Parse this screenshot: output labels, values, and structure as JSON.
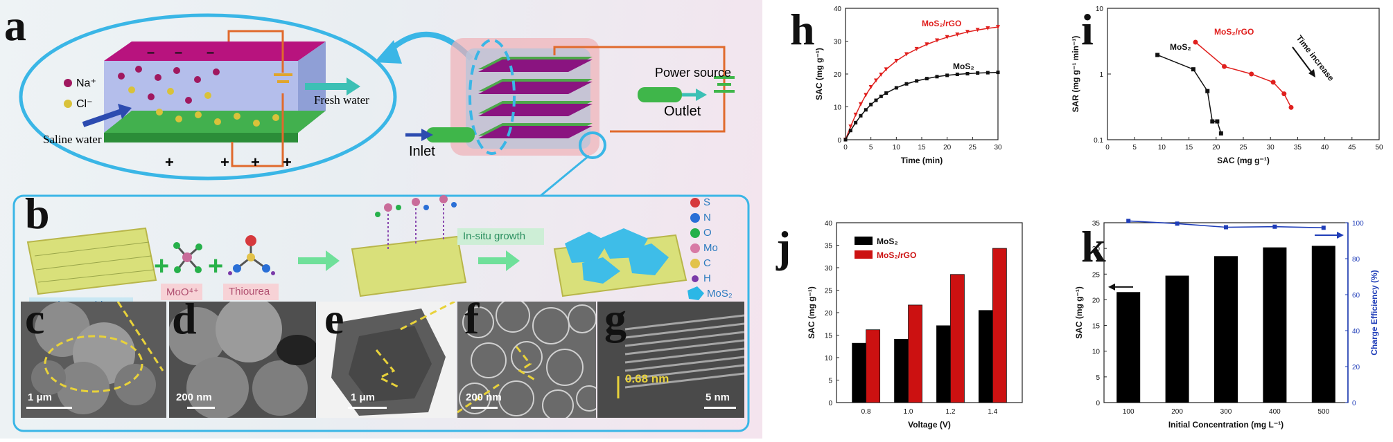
{
  "figure": {
    "letters": [
      "a",
      "b",
      "c",
      "d",
      "e",
      "f",
      "g",
      "h",
      "i",
      "j",
      "k"
    ],
    "colors": {
      "black_bar": "#000000",
      "red_bar": "#cc1111",
      "red_line": "#e0201e",
      "blue_line": "#1f3db8",
      "frame_cyan": "#3ab6e6"
    }
  },
  "panel_a": {
    "ions": [
      "Na⁺",
      "Cl⁻"
    ],
    "saline": "Saline water",
    "fresh": "Fresh water",
    "inlet": "Inlet",
    "outlet": "Outlet",
    "power": "Power source",
    "minus": "–",
    "plus": "+"
  },
  "panel_b": {
    "graphene": "Graphene oxide",
    "moo": "MoO⁴⁺",
    "thiourea": "Thiourea",
    "insitu": "In-situ growth",
    "legend": [
      "S",
      "N",
      "O",
      "Mo",
      "C",
      "H",
      "MoS₂"
    ],
    "legend_colors": [
      "#d6393d",
      "#2a6fd6",
      "#26b04a",
      "#d87aa5",
      "#e2c24a",
      "#7a3aa8",
      "#2bb7e6"
    ]
  },
  "micrographs": {
    "c": "1 μm",
    "d": "200 nm",
    "e": "1 μm",
    "f": "200 nm",
    "g_spacing": "0.68 nm",
    "g": "5 nm"
  },
  "chart_h": {
    "xlabel": "Time (min)",
    "ylabel": "SAC (mg g⁻¹)",
    "series_red": "MoS₂/rGO",
    "series_black": "MoS₂"
  },
  "chart_i": {
    "xlabel": "SAC (mg g⁻¹)",
    "ylabel": "SAR (mg g⁻¹ min⁻¹)",
    "series_red": "MoS₂/rGO",
    "series_black": "MoS₂",
    "annotation": "Time increase"
  },
  "chart_j": {
    "xlabel": "Voltage (V)",
    "ylabel": "SAC (mg g⁻¹)",
    "legend_black": "MoS₂",
    "legend_red": "MoS₂/rGO"
  },
  "chart_k": {
    "xlabel": "Initial Concentration (mg L⁻¹)",
    "ylabel_left": "SAC (mg g⁻¹)",
    "ylabel_right": "Charge Efficiency (%)"
  },
  "chart_data": [
    {
      "type": "line",
      "title": "",
      "xlabel": "Time (min)",
      "ylabel": "SAC (mg g⁻¹)",
      "xlim": [
        0,
        30
      ],
      "ylim": [
        0,
        40
      ],
      "xticks": [
        0,
        5,
        10,
        15,
        20,
        25,
        30
      ],
      "yticks": [
        0,
        10,
        20,
        30,
        40
      ],
      "series": [
        {
          "name": "MoS₂/rGO",
          "color": "#e0201e",
          "x": [
            0,
            1,
            2,
            3,
            4,
            5,
            6,
            7,
            8,
            10,
            12,
            14,
            16,
            18,
            20,
            22,
            24,
            26,
            28,
            30
          ],
          "y": [
            0,
            4,
            7.6,
            10.8,
            13.6,
            16,
            18,
            19.8,
            21.4,
            24,
            26,
            27.6,
            29,
            30.2,
            31.2,
            32,
            32.8,
            33.4,
            33.9,
            34.3
          ]
        },
        {
          "name": "MoS₂",
          "color": "#111111",
          "x": [
            0,
            1,
            2,
            3,
            4,
            5,
            6,
            7,
            8,
            10,
            12,
            14,
            16,
            18,
            20,
            22,
            24,
            26,
            28,
            30
          ],
          "y": [
            0,
            2.8,
            5.2,
            7.3,
            9.1,
            10.7,
            12,
            13.2,
            14.2,
            15.8,
            17,
            17.9,
            18.6,
            19.2,
            19.6,
            19.9,
            20.1,
            20.3,
            20.4,
            20.5
          ]
        }
      ]
    },
    {
      "type": "line",
      "title": "",
      "xlabel": "SAC (mg g⁻¹)",
      "ylabel": "SAR (mg g⁻¹ min⁻¹)",
      "yscale": "log",
      "xlim": [
        0,
        50
      ],
      "ylim": [
        0.1,
        10
      ],
      "xticks": [
        0,
        5,
        10,
        15,
        20,
        25,
        30,
        35,
        40,
        45,
        50
      ],
      "yticks": [
        0.1,
        1,
        10
      ],
      "series": [
        {
          "name": "MoS₂",
          "color": "#111111",
          "x": [
            9.2,
            15.8,
            18.4,
            19.3,
            20.2,
            20.9
          ],
          "y": [
            1.95,
            1.18,
            0.55,
            0.19,
            0.19,
            0.125
          ]
        },
        {
          "name": "MoS₂/rGO",
          "color": "#e0201e",
          "x": [
            16.2,
            21.5,
            26.5,
            30.5,
            32.5,
            33.8
          ],
          "y": [
            3.05,
            1.3,
            1.0,
            0.75,
            0.5,
            0.31
          ]
        }
      ],
      "annotation": "Time increase"
    },
    {
      "type": "bar",
      "title": "",
      "xlabel": "Voltage (V)",
      "ylabel": "SAC (mg g⁻¹)",
      "categories": [
        "0.8",
        "1.0",
        "1.2",
        "1.4"
      ],
      "ylim": [
        0,
        40
      ],
      "yticks": [
        0,
        5,
        10,
        15,
        20,
        25,
        30,
        35,
        40
      ],
      "series": [
        {
          "name": "MoS₂",
          "color": "#000000",
          "values": [
            13.2,
            14.1,
            17.1,
            20.5
          ]
        },
        {
          "name": "MoS₂/rGO",
          "color": "#cc1111",
          "values": [
            16.2,
            21.7,
            28.5,
            34.3
          ]
        }
      ],
      "legend": "top-left"
    },
    {
      "type": "bar",
      "title": "",
      "xlabel": "Initial Concentration (mg L⁻¹)",
      "ylabel": "SAC (mg g⁻¹)",
      "categories": [
        "100",
        "200",
        "300",
        "400",
        "500"
      ],
      "ylim": [
        0,
        35
      ],
      "yticks": [
        0,
        5,
        10,
        15,
        20,
        25,
        30,
        35
      ],
      "series": [
        {
          "name": "SAC",
          "color": "#000000",
          "values": [
            21.5,
            24.7,
            28.5,
            30.2,
            30.5
          ]
        },
        {
          "name": "Charge Efficiency",
          "color": "#1f3db8",
          "axis": "right",
          "values": [
            101,
            99.5,
            97.5,
            97.8,
            97.2
          ]
        }
      ],
      "y2lim": [
        0,
        100
      ],
      "y2ticks": [
        0,
        20,
        40,
        60,
        80,
        100
      ]
    }
  ]
}
